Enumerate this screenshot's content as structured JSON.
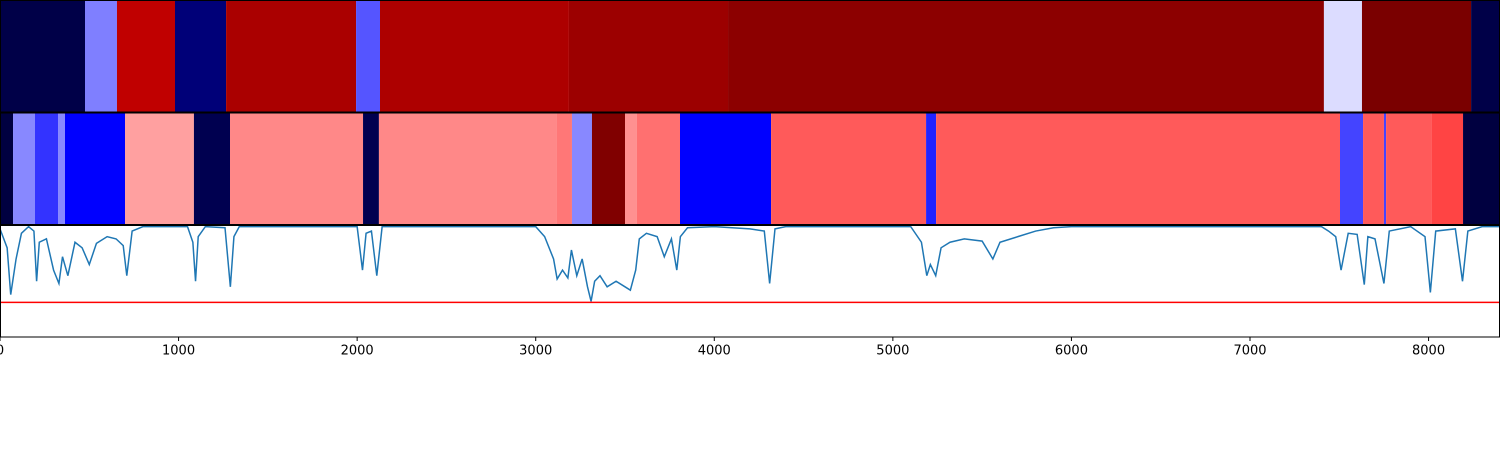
{
  "chart_data": [
    {
      "type": "heatmap",
      "xlim": [
        0,
        8400
      ],
      "edges": [
        0,
        476,
        655,
        980,
        1266,
        1994,
        2128,
        3186,
        4077,
        7414,
        7627,
        8238,
        8400
      ],
      "colors": [
        "#000048",
        "#7f7fff",
        "#c00000",
        "#000078",
        "#aa0000",
        "#5555ff",
        "#ad0000",
        "#9c0000",
        "#8c0000",
        "#dcdcff",
        "#7a0000",
        "#000048"
      ]
    },
    {
      "type": "heatmap",
      "xlim": [
        0,
        8400
      ],
      "edges": [
        0,
        73,
        196,
        325,
        364,
        700,
        1086,
        1288,
        2033,
        2122,
        3119,
        3203,
        3315,
        3500,
        3567,
        3808,
        4318,
        5186,
        5242,
        7504,
        7633,
        7750,
        7762,
        8019,
        8193,
        8400
      ],
      "colors": [
        "#000040",
        "#8888ff",
        "#3333ff",
        "#8888ff",
        "#0000ff",
        "#ffa0a0",
        "#000050",
        "#ff8888",
        "#000050",
        "#ff8888",
        "#ff7777",
        "#8888ff",
        "#800000",
        "#ff9090",
        "#ff7070",
        "#0000ff",
        "#ff5a5a",
        "#2222ff",
        "#ff5a5a",
        "#4444ff",
        "#ff5a5a",
        "#4444ff",
        "#ff5a5a",
        "#ff4444",
        "#000040"
      ]
    },
    {
      "type": "line",
      "xlim": [
        0,
        8400
      ],
      "ylim": [
        0,
        1
      ],
      "color": "#1f77b4",
      "threshold": 0.31,
      "threshold_color": "#ff0000",
      "xticks": [
        0,
        1000,
        2000,
        3000,
        4000,
        5000,
        6000,
        7000,
        8000
      ],
      "x": [
        0,
        40,
        60,
        90,
        120,
        160,
        190,
        205,
        220,
        260,
        300,
        330,
        350,
        380,
        420,
        460,
        500,
        540,
        600,
        650,
        690,
        710,
        740,
        800,
        1050,
        1080,
        1095,
        1110,
        1150,
        1260,
        1290,
        1310,
        1340,
        2000,
        2030,
        2050,
        2080,
        2110,
        2140,
        3000,
        3050,
        3100,
        3120,
        3150,
        3180,
        3200,
        3230,
        3260,
        3290,
        3310,
        3330,
        3360,
        3400,
        3450,
        3500,
        3530,
        3560,
        3580,
        3620,
        3680,
        3720,
        3760,
        3790,
        3810,
        3850,
        4000,
        4100,
        4200,
        4280,
        4310,
        4340,
        4400,
        5100,
        5160,
        5190,
        5210,
        5240,
        5270,
        5320,
        5400,
        5500,
        5560,
        5600,
        5700,
        5800,
        5900,
        6000,
        7400,
        7440,
        7480,
        7510,
        7550,
        7600,
        7640,
        7660,
        7700,
        7750,
        7780,
        7900,
        7980,
        8010,
        8040,
        8150,
        8190,
        8220,
        8300,
        8400
      ],
      "values": [
        0.97,
        0.8,
        0.38,
        0.7,
        0.93,
        0.99,
        0.95,
        0.5,
        0.85,
        0.88,
        0.6,
        0.48,
        0.72,
        0.55,
        0.85,
        0.8,
        0.65,
        0.84,
        0.9,
        0.88,
        0.82,
        0.55,
        0.95,
        0.99,
        0.99,
        0.85,
        0.5,
        0.9,
        0.99,
        0.98,
        0.45,
        0.9,
        0.99,
        0.99,
        0.6,
        0.93,
        0.95,
        0.55,
        0.99,
        0.99,
        0.9,
        0.7,
        0.52,
        0.6,
        0.53,
        0.78,
        0.55,
        0.7,
        0.45,
        0.32,
        0.5,
        0.55,
        0.45,
        0.5,
        0.45,
        0.42,
        0.6,
        0.88,
        0.93,
        0.9,
        0.72,
        0.88,
        0.6,
        0.9,
        0.98,
        0.99,
        0.98,
        0.97,
        0.95,
        0.48,
        0.97,
        0.99,
        0.99,
        0.85,
        0.55,
        0.65,
        0.55,
        0.8,
        0.85,
        0.88,
        0.86,
        0.7,
        0.85,
        0.9,
        0.95,
        0.98,
        0.99,
        0.99,
        0.95,
        0.9,
        0.6,
        0.93,
        0.92,
        0.47,
        0.9,
        0.88,
        0.48,
        0.95,
        0.99,
        0.9,
        0.4,
        0.95,
        0.97,
        0.5,
        0.95,
        0.99,
        0.99
      ]
    }
  ]
}
